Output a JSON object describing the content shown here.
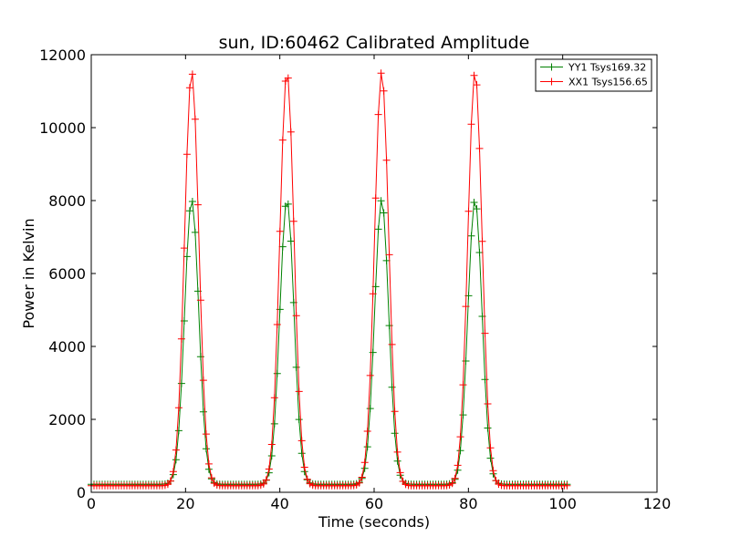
{
  "chart_data": {
    "type": "line",
    "title": "sun, ID:60462 Calibrated Amplitude",
    "xlabel": "Time (seconds)",
    "ylabel": "Power in Kelvin",
    "xlim": [
      0,
      120
    ],
    "ylim": [
      0,
      12000
    ],
    "xticks": [
      "0",
      "20",
      "40",
      "60",
      "80",
      "100",
      "120"
    ],
    "yticks": [
      "0",
      "2000",
      "4000",
      "6000",
      "8000",
      "10000",
      "12000"
    ],
    "grid": false,
    "legend_position": "top-right",
    "marker": "plus",
    "series": [
      {
        "name": "YY1 Tsys169.32",
        "color": "#008000",
        "baseline": 220,
        "peak_centers": [
          21.3,
          41.5,
          61.6,
          81.4
        ],
        "peak_amplitude": 7800
      },
      {
        "name": "XX1 Tsys156.65",
        "color": "#ff0000",
        "baseline": 180,
        "peak_centers": [
          21.3,
          41.5,
          61.6,
          81.4
        ],
        "peak_amplitude": 11350
      }
    ]
  }
}
